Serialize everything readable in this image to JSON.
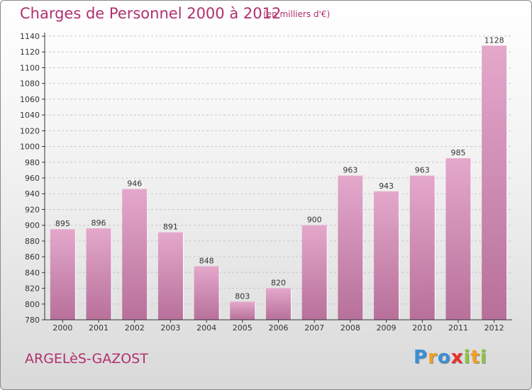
{
  "header": {
    "title": "Charges de Personnel 2000 à 2012",
    "unit": "(en milliers d'€)"
  },
  "footer": {
    "location": "ARGELèS-GAZOST",
    "brand_letters": [
      {
        "char": "P",
        "color": "#3a8fd8"
      },
      {
        "char": "r",
        "color": "#f0a020"
      },
      {
        "char": "o",
        "color": "#3a8fd8"
      },
      {
        "char": "x",
        "color": "#e8302a"
      },
      {
        "char": "i",
        "color": "#8cc63f"
      },
      {
        "char": "t",
        "color": "#f0a020"
      },
      {
        "char": "i",
        "color": "#8cc63f"
      }
    ]
  },
  "colors": {
    "title": "#b0306e",
    "bar_top": "#e4a8cb",
    "bar_bottom": "#b7709a",
    "grid": "#c8c8c8",
    "axis": "#333333"
  },
  "chart_data": {
    "type": "bar",
    "title": "Charges de Personnel 2000 à 2012",
    "subtitle": "(en milliers d'€)",
    "categories": [
      "2000",
      "2001",
      "2002",
      "2003",
      "2004",
      "2005",
      "2006",
      "2007",
      "2008",
      "2009",
      "2010",
      "2011",
      "2012"
    ],
    "values": [
      895,
      896,
      946,
      891,
      848,
      803,
      820,
      900,
      963,
      943,
      963,
      985,
      1128
    ],
    "data_labels": [
      "895",
      "896",
      "946",
      "891",
      "848",
      "803",
      "820",
      "900",
      "963",
      "943",
      "963",
      "985",
      "1128"
    ],
    "ylim": [
      780,
      1140
    ],
    "yticks": [
      780,
      800,
      820,
      840,
      860,
      880,
      900,
      920,
      940,
      960,
      980,
      1000,
      1020,
      1040,
      1060,
      1080,
      1100,
      1120,
      1140
    ],
    "grid": true,
    "xlabel": "",
    "ylabel": ""
  }
}
